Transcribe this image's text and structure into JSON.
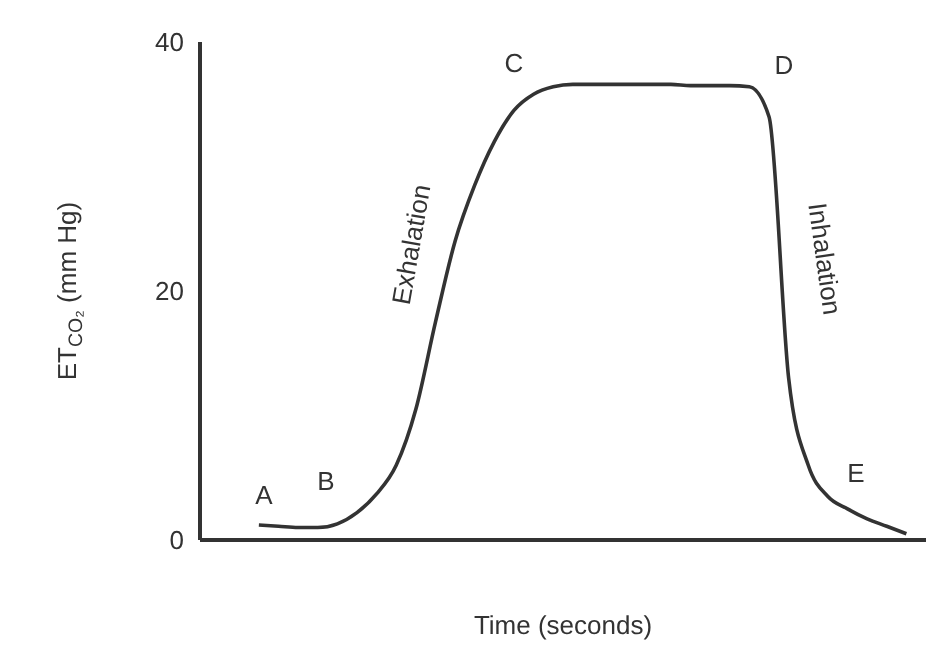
{
  "chart_data": {
    "type": "line",
    "xlabel": "Time (seconds)",
    "ylabel": "ET$_{CO₂}$ (mm Hg)",
    "categories": [
      null,
      null,
      null,
      null,
      null,
      null,
      null,
      null,
      null,
      null,
      null,
      null,
      null,
      null,
      null,
      null,
      null,
      null,
      null,
      null,
      null,
      null,
      null,
      null,
      null,
      null,
      null,
      null,
      null,
      null,
      null,
      null,
      null,
      null,
      null,
      null,
      null,
      null
    ],
    "series": [
      {
        "color": "#333333",
        "values": [
          null,
          null,
          null,
          1.2,
          1.1,
          1.0,
          1.0,
          1.3,
          2.2,
          3.7,
          6,
          10.5,
          17.5,
          24,
          28.5,
          32,
          34.5,
          35.8,
          36.4,
          36.6,
          36.6,
          36.6,
          36.6,
          36.6,
          36.6,
          36.5,
          36.5,
          36.5,
          36.4,
          34,
          13,
          6,
          3.5,
          2.5,
          1.7,
          1.1,
          0.5,
          null
        ]
      }
    ],
    "ylim": [
      0,
      40
    ],
    "yticks": [
      0,
      20,
      40
    ],
    "grid": false,
    "legend": false,
    "marker": "none",
    "line_style": "solid",
    "annotations": [
      "A",
      "B",
      "C",
      "D",
      "E",
      "Exhalation",
      "Inhalation"
    ]
  }
}
